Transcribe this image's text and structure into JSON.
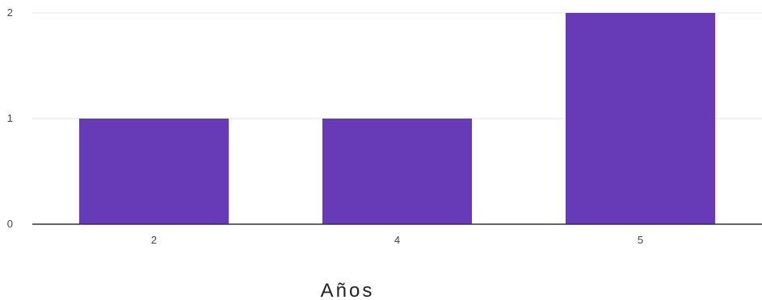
{
  "chart_data": {
    "type": "bar",
    "categories": [
      "2",
      "4",
      "5"
    ],
    "values": [
      1,
      1,
      2
    ],
    "ylim": [
      0,
      2
    ],
    "yticks": [
      "0",
      "1",
      "2"
    ],
    "xlabel": "Años",
    "ylabel": "",
    "title": "",
    "grid": true,
    "bar_color": "#673ab7",
    "grid_color": "#eeeeee",
    "axis_color": "#333333"
  }
}
